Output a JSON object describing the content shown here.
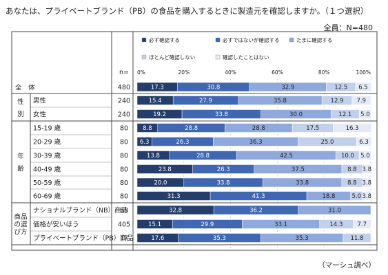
{
  "question": "あなたは、プライベートブランド（PB）の食品を購入するときに製造元を確認しますか。（１つ選択）",
  "total_label": "全員：N=480",
  "source": "（マーシュ調べ）",
  "n_header": "n=",
  "chart_data": {
    "type": "bar",
    "orientation": "horizontal",
    "stacked": true,
    "percent_scale": true,
    "xlim": [
      0,
      100
    ],
    "x_ticks": [
      "0%",
      "20%",
      "40%",
      "60%",
      "80%",
      "100%"
    ],
    "legend_position": "top",
    "series": [
      {
        "name": "必ず確認する",
        "color": "#253d6b",
        "values": [
          17.3,
          15.4,
          19.2,
          8.8,
          6.3,
          13.8,
          23.8,
          20.0,
          31.3,
          32.8,
          15.1,
          17.6
        ]
      },
      {
        "name": "必ずではないが確認する",
        "color": "#3f67b2",
        "values": [
          30.8,
          27.9,
          33.8,
          28.8,
          26.3,
          28.8,
          26.3,
          33.8,
          41.3,
          36.2,
          29.9,
          35.3
        ]
      },
      {
        "name": "たまに確認する",
        "color": "#8fa9dc",
        "values": [
          32.9,
          35.8,
          30.0,
          28.8,
          36.3,
          42.5,
          37.5,
          33.8,
          18.8,
          31.0,
          33.1,
          35.3
        ]
      },
      {
        "name": "ほとんど確認しない",
        "color": "#c2d0ec",
        "values": [
          12.5,
          12.9,
          12.1,
          17.5,
          25.0,
          10.0,
          8.8,
          8.8,
          5.0,
          0,
          14.3,
          11.8
        ]
      },
      {
        "name": "確認したことはない",
        "color": "#e5ebf6",
        "values": [
          6.5,
          7.9,
          5.0,
          16.3,
          6.3,
          5.0,
          3.8,
          3.8,
          3.8,
          0,
          7.7,
          0
        ]
      }
    ],
    "rows": [
      {
        "group": "全　体",
        "label": "",
        "n": "480"
      },
      {
        "group": "性別",
        "label": "男性",
        "n": "240"
      },
      {
        "group": "性別",
        "label": "女性",
        "n": "240"
      },
      {
        "group": "年齢",
        "label": "15-19 歳",
        "n": "80"
      },
      {
        "group": "年齢",
        "label": "20-29 歳",
        "n": "80"
      },
      {
        "group": "年齢",
        "label": "30-39 歳",
        "n": "80"
      },
      {
        "group": "年齢",
        "label": "40-49 歳",
        "n": "80"
      },
      {
        "group": "年齢",
        "label": "50-59 歳",
        "n": "80"
      },
      {
        "group": "年齢",
        "label": "60-69 歳",
        "n": "80"
      },
      {
        "group": "商品の選び方",
        "label": "ナショナルブランド（NB）商品",
        "n": "58"
      },
      {
        "group": "商品の選び方",
        "label": "価格が安いほう",
        "n": "405"
      },
      {
        "group": "商品の選び方",
        "label": "プライベートブランド（PB）商品",
        "n": "17"
      }
    ]
  }
}
